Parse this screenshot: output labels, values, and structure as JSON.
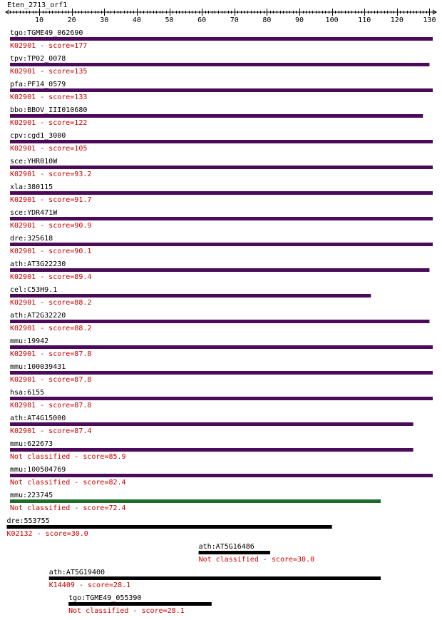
{
  "query_name": "Eten_2713_orf1",
  "scale": {
    "min": 1,
    "max": 131,
    "ticks": [
      10,
      20,
      30,
      40,
      50,
      60,
      70,
      80,
      90,
      100,
      110,
      120,
      130
    ]
  },
  "colors": {
    "text": "#000000",
    "annotation": "#cc0000",
    "bar_purple": "#4b0a5a",
    "bar_green": "#1e6b2a",
    "bar_black": "#000000"
  },
  "hits": [
    {
      "name": "tgo:TGME49_062690",
      "annotation": "K02901 - score=177",
      "start": 1,
      "end": 131,
      "color": "purple"
    },
    {
      "name": "tpv:TP02_0078",
      "annotation": "K02901 - score=135",
      "start": 1,
      "end": 130,
      "color": "purple"
    },
    {
      "name": "pfa:PF14_0579",
      "annotation": "K02901 - score=133",
      "start": 1,
      "end": 131,
      "color": "purple"
    },
    {
      "name": "bbo:BBOV_III010680",
      "annotation": "K02901 - score=122",
      "start": 1,
      "end": 128,
      "color": "purple"
    },
    {
      "name": "cpv:cgd1_3000",
      "annotation": "K02901 - score=105",
      "start": 1,
      "end": 131,
      "color": "purple"
    },
    {
      "name": "sce:YHR010W",
      "annotation": "K02901 - score=93.2",
      "start": 1,
      "end": 131,
      "color": "purple"
    },
    {
      "name": "xla:380115",
      "annotation": "K02901 - score=91.7",
      "start": 1,
      "end": 131,
      "color": "purple"
    },
    {
      "name": "sce:YDR471W",
      "annotation": "K02901 - score=90.9",
      "start": 1,
      "end": 131,
      "color": "purple"
    },
    {
      "name": "dre:325618",
      "annotation": "K02901 - score=90.1",
      "start": 1,
      "end": 131,
      "color": "purple"
    },
    {
      "name": "ath:AT3G22230",
      "annotation": "K02901 - score=89.4",
      "start": 1,
      "end": 130,
      "color": "purple"
    },
    {
      "name": "cel:C53H9.1",
      "annotation": "K02901 - score=88.2",
      "start": 1,
      "end": 112,
      "color": "purple"
    },
    {
      "name": "ath:AT2G32220",
      "annotation": "K02901 - score=88.2",
      "start": 1,
      "end": 130,
      "color": "purple"
    },
    {
      "name": "mmu:19942",
      "annotation": "K02901 - score=87.8",
      "start": 1,
      "end": 131,
      "color": "purple"
    },
    {
      "name": "mmu:100039431",
      "annotation": "K02901 - score=87.8",
      "start": 1,
      "end": 131,
      "color": "purple"
    },
    {
      "name": "hsa:6155",
      "annotation": "K02901 - score=87.8",
      "start": 1,
      "end": 131,
      "color": "purple"
    },
    {
      "name": "ath:AT4G15000",
      "annotation": "K02901 - score=87.4",
      "start": 1,
      "end": 125,
      "color": "purple"
    },
    {
      "name": "mmu:622673",
      "annotation": "Not classified - score=85.9",
      "start": 1,
      "end": 125,
      "color": "purple"
    },
    {
      "name": "mmu:100504769",
      "annotation": "Not classified - score=82.4",
      "start": 1,
      "end": 131,
      "color": "purple"
    },
    {
      "name": "mmu:223745",
      "annotation": "Not classified - score=72.4",
      "start": 1,
      "end": 115,
      "color": "green"
    },
    {
      "name": "dre:553755",
      "annotation": "K02132 - score=30.0",
      "start": 0,
      "end": 100,
      "color": "black"
    },
    {
      "name": "ath:AT5G16486",
      "annotation": "Not classified - score=30.0",
      "start": 59,
      "end": 81,
      "color": "black"
    },
    {
      "name": "ath:AT5G19400",
      "annotation": "K14409 - score=28.1",
      "start": 13,
      "end": 115,
      "color": "black"
    },
    {
      "name": "tgo:TGME49_055390",
      "annotation": "Not classified - score=28.1",
      "start": 19,
      "end": 63,
      "color": "black"
    }
  ]
}
